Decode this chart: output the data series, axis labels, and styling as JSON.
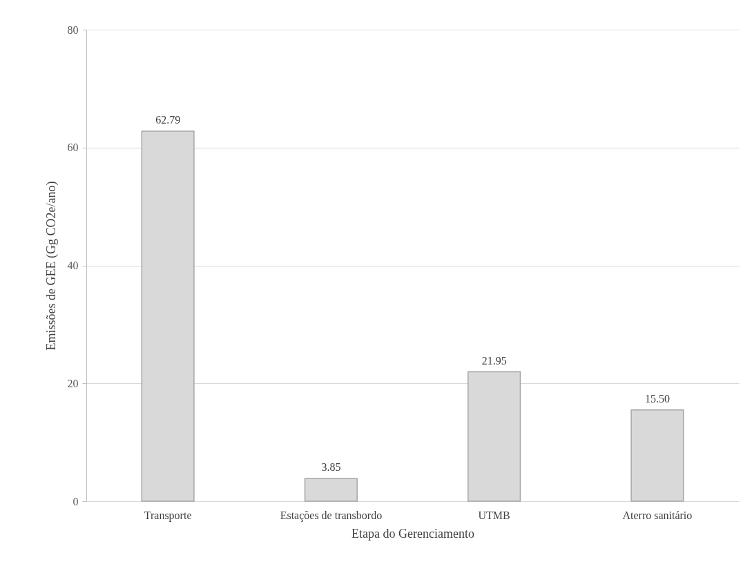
{
  "chart_data": {
    "type": "bar",
    "xlabel": "Etapa do Gerenciamento",
    "ylabel": "Emissões de GEE (Gg CO2e/ano)",
    "categories": [
      "Transporte",
      "Estações de transbordo",
      "UTMB",
      "Aterro sanitário"
    ],
    "values": [
      62.79,
      3.85,
      21.95,
      15.5
    ],
    "value_labels": [
      "62.79",
      "3.85",
      "21.95",
      "15.50"
    ],
    "color": "#d9d9d9",
    "ylim": [
      0,
      80
    ],
    "yticks": [
      0,
      20,
      40,
      60,
      80
    ],
    "grid": "y"
  }
}
